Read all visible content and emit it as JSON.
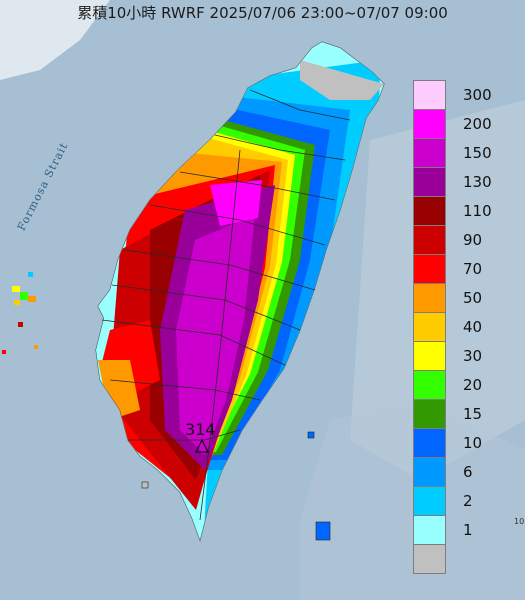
{
  "title": "累積10小時 RWRF 2025/07/06 23:00~07/07 09:00",
  "map": {
    "strait_label": "Formosa Strait",
    "max_value": "314",
    "stray_tick": "10"
  },
  "legend": [
    {
      "label": "300",
      "color": "#ffccff"
    },
    {
      "label": "200",
      "color": "#ff00ff"
    },
    {
      "label": "150",
      "color": "#cc00cc"
    },
    {
      "label": "130",
      "color": "#990099"
    },
    {
      "label": "110",
      "color": "#990000"
    },
    {
      "label": "90",
      "color": "#cc0000"
    },
    {
      "label": "70",
      "color": "#ff0000"
    },
    {
      "label": "50",
      "color": "#ff9900"
    },
    {
      "label": "40",
      "color": "#ffcc00"
    },
    {
      "label": "30",
      "color": "#ffff00"
    },
    {
      "label": "20",
      "color": "#33ff00"
    },
    {
      "label": "15",
      "color": "#339900"
    },
    {
      "label": "10",
      "color": "#0066ff"
    },
    {
      "label": "6",
      "color": "#0099ff"
    },
    {
      "label": "2",
      "color": "#00ccff"
    },
    {
      "label": "1",
      "color": "#99ffff"
    },
    {
      "label": "",
      "color": "#c0c0c0"
    }
  ]
}
